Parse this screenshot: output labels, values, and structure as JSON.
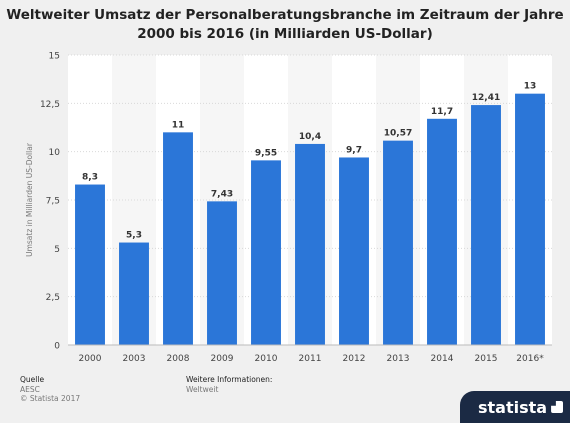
{
  "chart_data": {
    "type": "bar",
    "title": "Weltweiter Umsatz der Personalberatungsbranche im Zeitraum der Jahre 2000 bis 2016 (in Milliarden US-Dollar)",
    "ylabel": "Umsatz in Milliarden US-Dollar",
    "categories": [
      "2000",
      "2003",
      "2008",
      "2009",
      "2010",
      "2011",
      "2012",
      "2013",
      "2014",
      "2015",
      "2016*"
    ],
    "values": [
      8.3,
      5.3,
      11,
      7.43,
      9.55,
      10.4,
      9.7,
      10.57,
      11.7,
      12.41,
      13
    ],
    "value_labels": [
      "8,3",
      "5,3",
      "11",
      "7,43",
      "9,55",
      "10,4",
      "9,7",
      "10,57",
      "11,7",
      "12,41",
      "13"
    ],
    "ylim": [
      0,
      15
    ],
    "yticks": [
      0,
      2.5,
      5,
      7.5,
      10,
      12.5,
      15
    ],
    "ytick_labels": [
      "0",
      "2,5",
      "5",
      "7,5",
      "10",
      "12,5",
      "15"
    ],
    "grid": true,
    "bar_color": "#2b76d8"
  },
  "footer": {
    "source_label": "Quelle",
    "source_value": "AESC",
    "copyright": "© Statista 2017",
    "info_label": "Weitere Informationen:",
    "info_value": "Weltweit",
    "brand": "statista"
  }
}
